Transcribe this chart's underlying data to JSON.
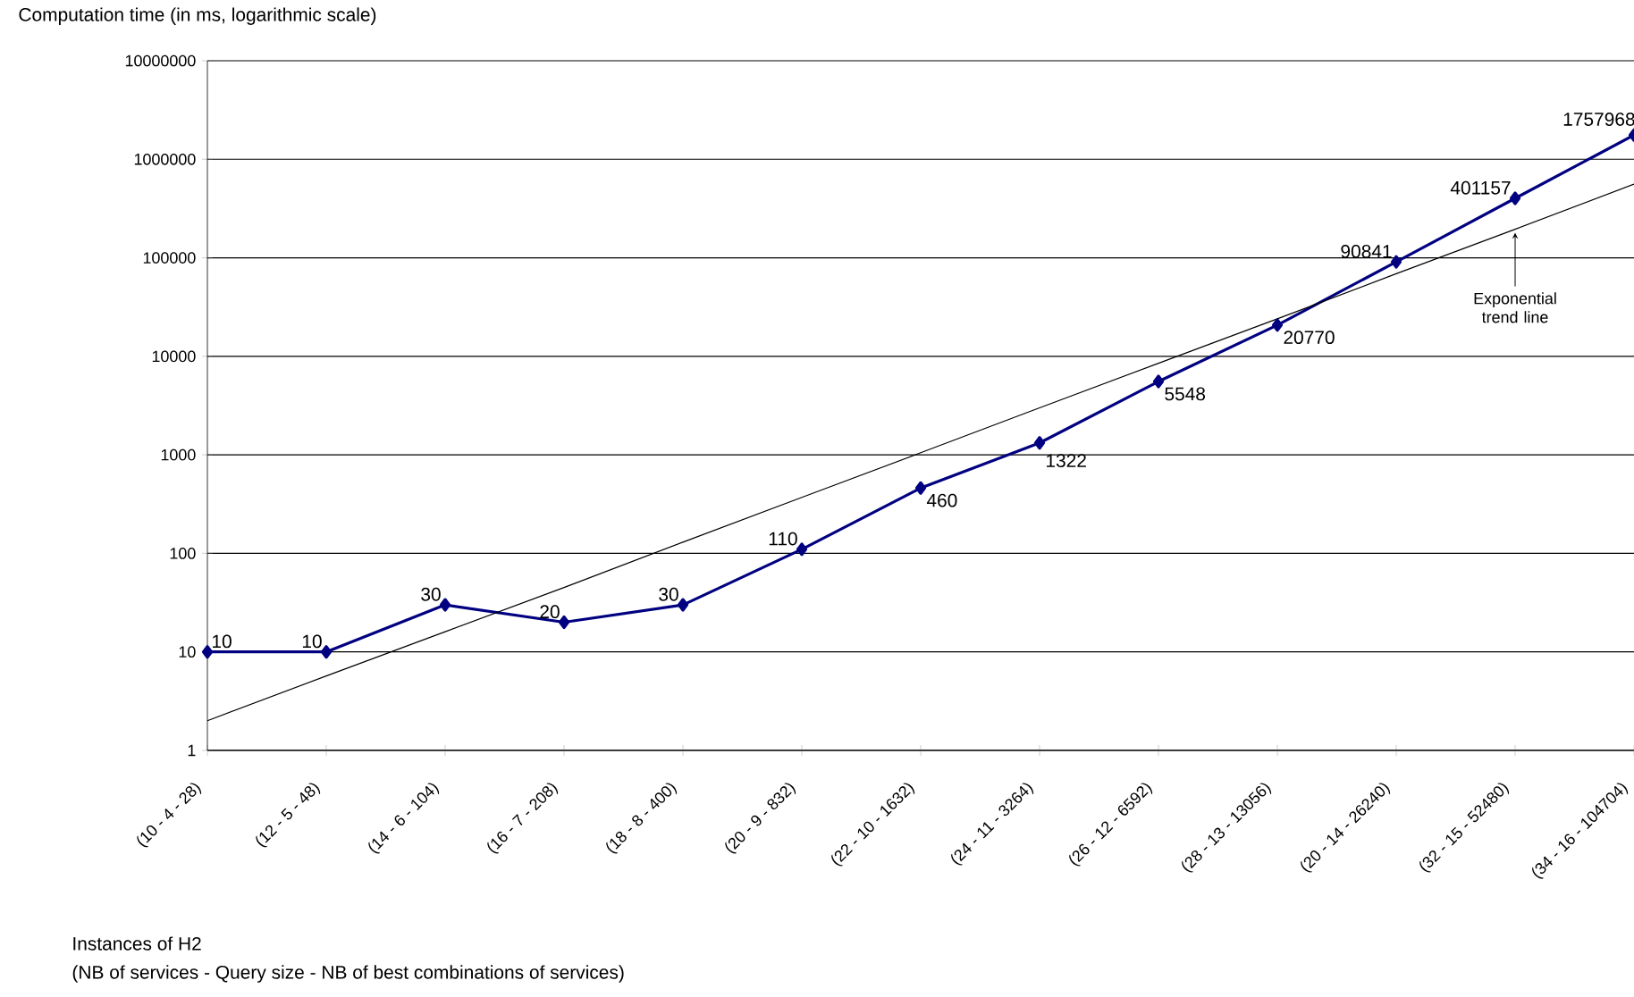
{
  "chart_data": {
    "type": "line",
    "ylabel": "Computation time (in ms, logarithmic scale)",
    "xlabel": "Instances of H2",
    "annotations": [
      "(NB of services - Query size - NB of best combinations of services)",
      {
        "text": "Exponential trend line",
        "x": "(32 - 15 - 52480)",
        "y": 195000
      }
    ],
    "categories": [
      "(10 - 4 - 28)",
      "(12 - 5 - 48)",
      "(14 - 6 - 104)",
      "(16 - 7 - 208)",
      "(18 - 8 - 400)",
      "(20 - 9 - 832)",
      "(22 - 10 - 1632)",
      "(24 - 11 - 3264)",
      "(26 - 12 - 6592)",
      "(28 - 13 - 13056)",
      "(20 - 14 - 26240)",
      "(32 - 15 - 52480)",
      "(34 - 16 - 104704)"
    ],
    "series": [
      {
        "color": "#000080",
        "values": [
          10,
          10,
          30,
          20,
          30,
          110,
          460,
          1322,
          5548,
          20770,
          90841,
          401157,
          1757968
        ],
        "marker": "diamond",
        "value_labels": [
          "10",
          "10",
          "30",
          "20",
          "30",
          "110",
          "460",
          "1322",
          "5548",
          "20770",
          "90841",
          "401157",
          "1757968"
        ]
      },
      {
        "type": "line",
        "color": "#000000",
        "values": [
          2.0,
          5.7,
          16,
          45,
          130,
          370,
          1050,
          3000,
          8500,
          24000,
          69000,
          195000,
          560000
        ],
        "marker": "none"
      }
    ],
    "log": "y",
    "ylim": [
      1,
      10000000
    ],
    "yticks": [
      1,
      10,
      100,
      1000,
      10000,
      100000,
      1000000,
      10000000
    ],
    "grid": "y"
  }
}
